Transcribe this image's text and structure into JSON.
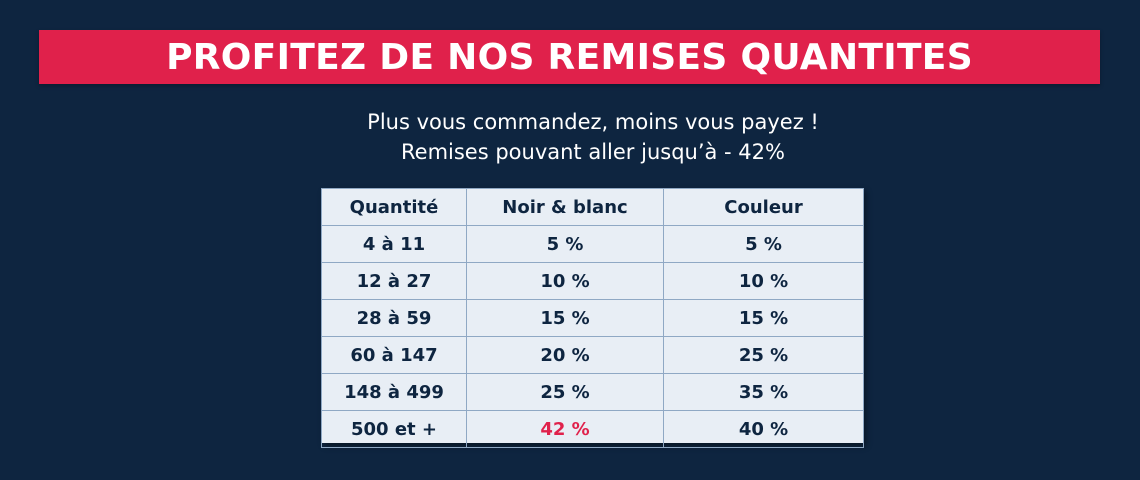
{
  "banner": {
    "title": "PROFITEZ DE NOS REMISES QUANTITES"
  },
  "subtitle": {
    "line1": "Plus vous commandez, moins vous payez !",
    "line2": "Remises pouvant aller jusqu’à - 42%"
  },
  "table": {
    "headers": [
      "Quantité",
      "Noir & blanc",
      "Couleur"
    ],
    "rows": [
      [
        "4 à 11",
        "5 %",
        "5 %"
      ],
      [
        "12 à 27",
        "10 %",
        "10 %"
      ],
      [
        "28 à 59",
        "15 %",
        "15 %"
      ],
      [
        "60 à 147",
        "20 %",
        "25 %"
      ],
      [
        "148 à 499",
        "25 %",
        "35 %"
      ],
      [
        "500 et +",
        "42 %",
        "40 %"
      ]
    ]
  },
  "colors": {
    "background": "#0e2540",
    "accent": "#e0214b",
    "table_bg": "#e8eef5",
    "table_text": "#0e2540"
  }
}
